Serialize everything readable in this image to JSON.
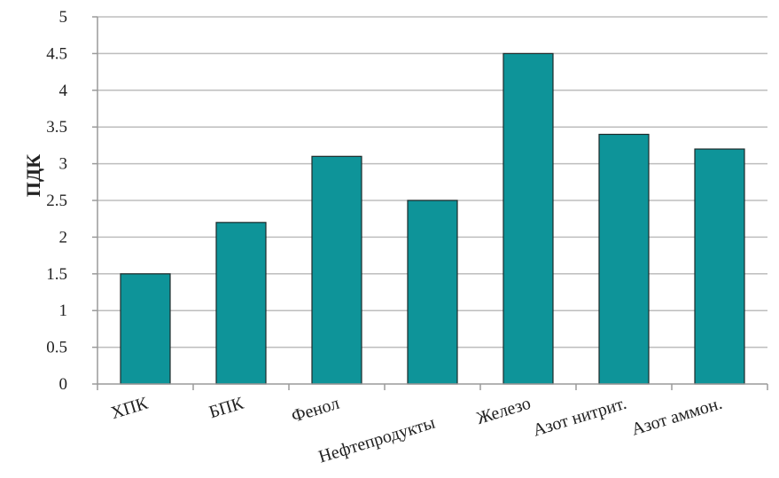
{
  "chart_data": {
    "type": "bar",
    "title": "",
    "xlabel": "",
    "ylabel": "ПДК",
    "ylim": [
      0,
      5
    ],
    "yticks": [
      "0",
      "0.5",
      "1",
      "1.5",
      "2",
      "2.5",
      "3",
      "3.5",
      "4",
      "4.5",
      "5"
    ],
    "categories": [
      "ХПК",
      "БПК",
      "Фенол",
      "Нефтепродукты",
      "Железо",
      "Азот нитрит.",
      "Азот аммон."
    ],
    "values": [
      1.5,
      2.2,
      3.1,
      2.5,
      4.5,
      3.4,
      3.2
    ],
    "grid": true,
    "legend": "none",
    "colors": {
      "bar_fill": "#0e9499",
      "bar_stroke": "#1d2a2a",
      "grid": "#bdbdbd",
      "axis": "#9a9a9a",
      "text": "#222222"
    }
  }
}
